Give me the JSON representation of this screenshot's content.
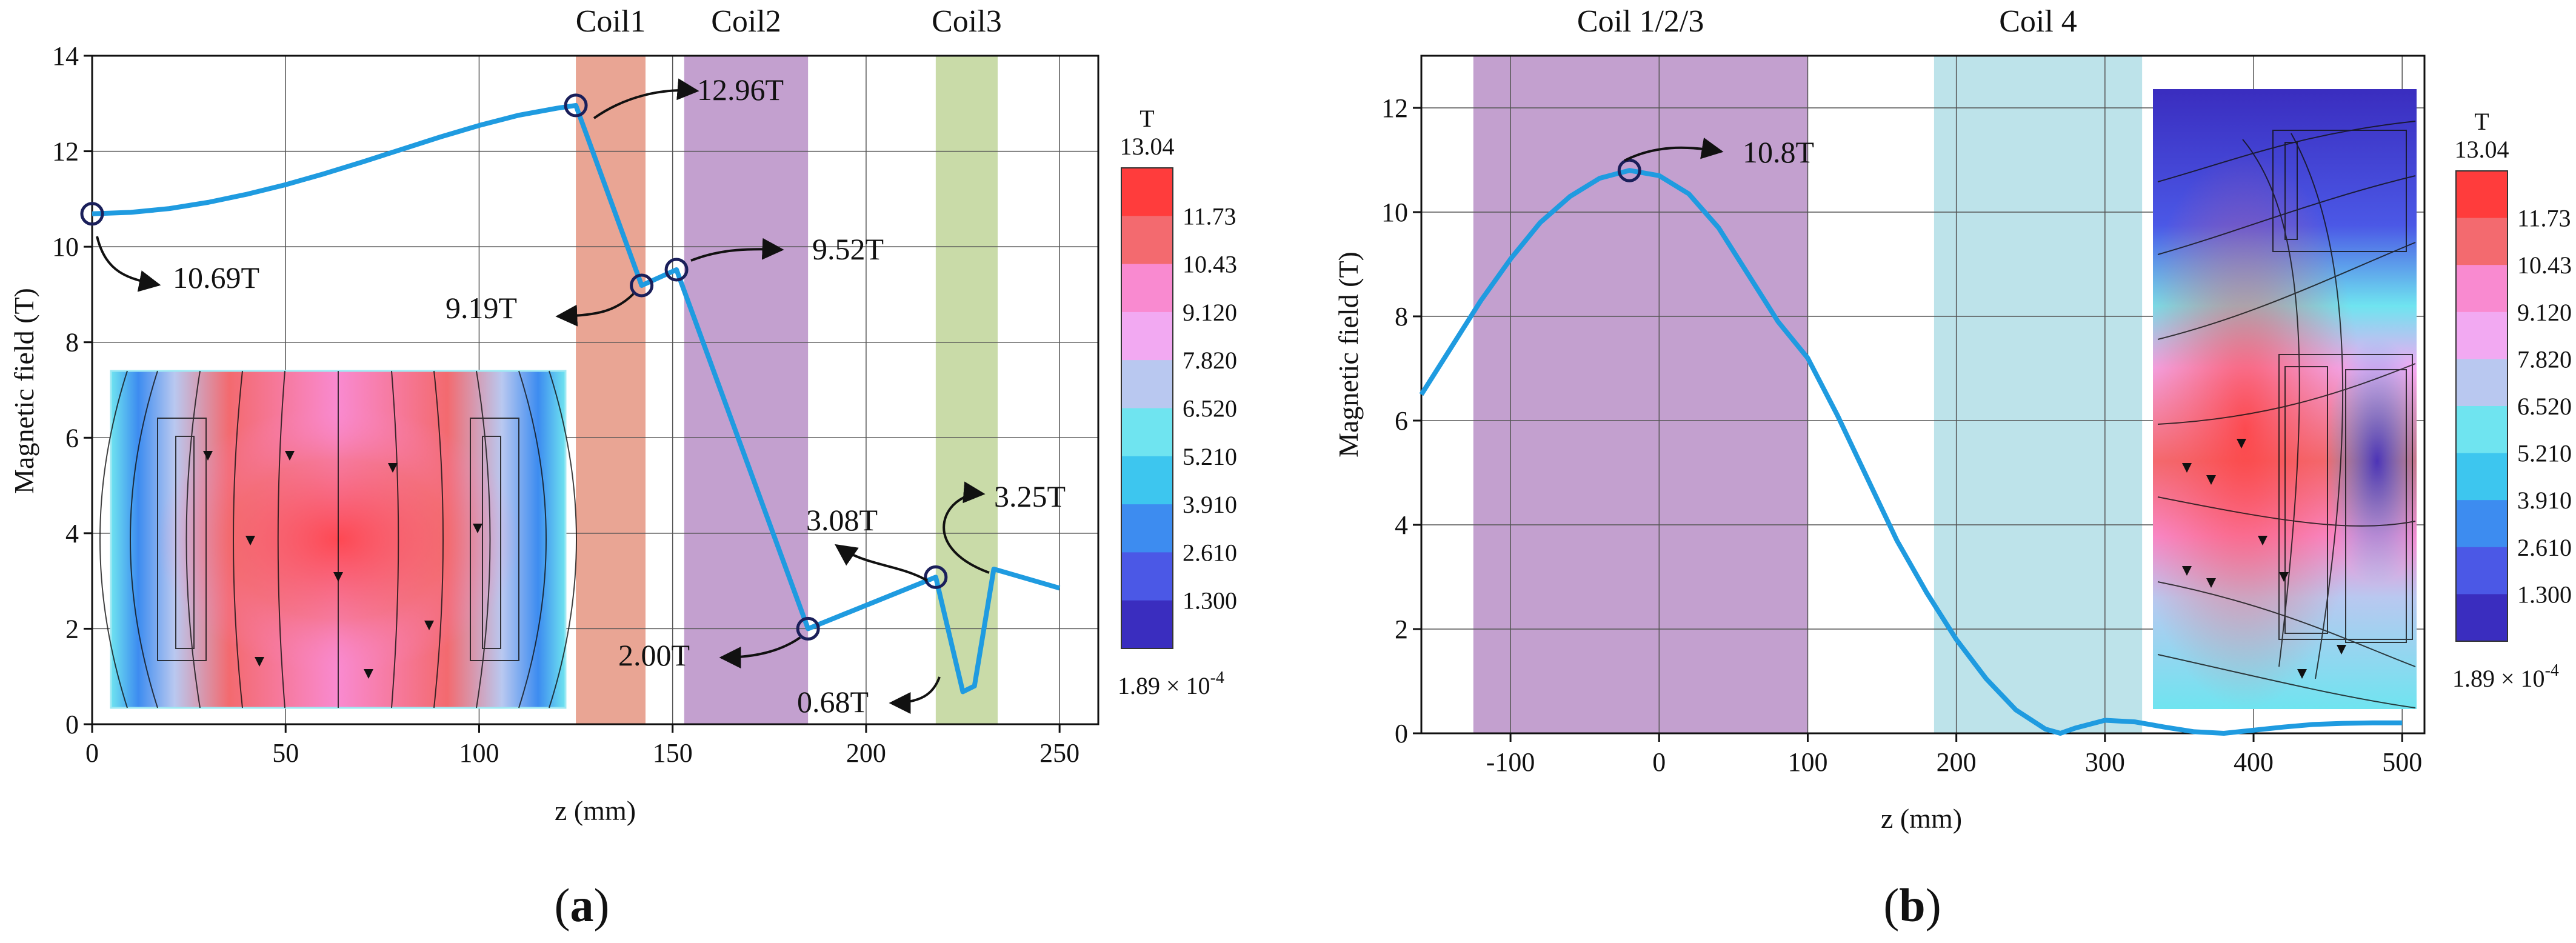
{
  "chart_data": [
    {
      "type": "line",
      "panel_label": "(a)",
      "xlabel": "z (mm)",
      "ylabel": "Magnetic field (T)",
      "xlim": [
        0,
        260
      ],
      "ylim": [
        0,
        14
      ],
      "xticks": [
        0,
        50,
        100,
        150,
        200,
        250
      ],
      "yticks": [
        0,
        2,
        4,
        6,
        8,
        10,
        12,
        14
      ],
      "grid": true,
      "coils": [
        {
          "label": "Coil1",
          "x0": 125,
          "x1": 143,
          "color": "#e9a594"
        },
        {
          "label": "Coil2",
          "x0": 153,
          "x1": 185,
          "color": "#c3a0cf"
        },
        {
          "label": "Coil3",
          "x0": 218,
          "x1": 234,
          "color": "#c9dba8"
        }
      ],
      "series": [
        {
          "name": "Magnetic field",
          "color": "#1f9be0",
          "x": [
            0,
            10,
            20,
            30,
            40,
            50,
            60,
            70,
            80,
            90,
            100,
            110,
            120,
            125,
            142,
            151,
            185,
            218,
            225,
            228,
            233,
            250
          ],
          "y": [
            10.69,
            10.72,
            10.8,
            10.93,
            11.1,
            11.3,
            11.53,
            11.78,
            12.04,
            12.3,
            12.54,
            12.75,
            12.9,
            12.96,
            9.19,
            9.52,
            2.0,
            3.08,
            0.68,
            0.8,
            3.25,
            2.85
          ]
        }
      ],
      "markers": [
        {
          "x": 0,
          "y": 10.69,
          "label": "10.69T"
        },
        {
          "x": 125,
          "y": 12.96,
          "label": "12.96T"
        },
        {
          "x": 142,
          "y": 9.19,
          "label": "9.19T"
        },
        {
          "x": 151,
          "y": 9.52,
          "label": "9.52T"
        },
        {
          "x": 185,
          "y": 2.0,
          "label": "2.00T"
        },
        {
          "x": 218,
          "y": 3.08,
          "label": "3.08T"
        }
      ],
      "extra_annotations": [
        {
          "x": 225,
          "y": 0.68,
          "label": "0.68T"
        },
        {
          "x": 233,
          "y": 3.25,
          "label": "3.25T"
        }
      ],
      "colorbar": {
        "unit": "T",
        "max_label": "13.04",
        "labels": [
          "11.73",
          "10.43",
          "9.120",
          "7.820",
          "6.520",
          "5.210",
          "3.910",
          "2.610",
          "1.300"
        ],
        "min_label": "1.89 × 10",
        "min_exp": "-4",
        "colors": [
          "#ff3c3c",
          "#f36a6f",
          "#f98ad0",
          "#f2a9f2",
          "#b9c8f0",
          "#6fe4f0",
          "#3dc6ef",
          "#3d8cf0",
          "#4b58e6",
          "#3a2dbf"
        ]
      }
    },
    {
      "type": "line",
      "panel_label": "(b)",
      "xlabel": "z (mm)",
      "ylabel": "Magnetic field (T)",
      "xlim": [
        -160,
        515
      ],
      "ylim": [
        0,
        13
      ],
      "xticks": [
        -100,
        0,
        100,
        200,
        300,
        400,
        500
      ],
      "yticks": [
        0,
        2,
        4,
        6,
        8,
        10,
        12
      ],
      "grid": true,
      "coils": [
        {
          "label": "Coil 1/2/3",
          "x0": -125,
          "x1": 100,
          "color": "#c3a0cf"
        },
        {
          "label": "Coil 4",
          "x0": 185,
          "x1": 325,
          "color": "#bde3ea"
        }
      ],
      "series": [
        {
          "name": "Magnetic field",
          "color": "#1f9be0",
          "x": [
            -160,
            -140,
            -120,
            -100,
            -80,
            -60,
            -40,
            -20,
            0,
            20,
            40,
            60,
            80,
            100,
            120,
            140,
            160,
            180,
            200,
            220,
            240,
            260,
            270,
            280,
            300,
            320,
            340,
            360,
            380,
            400,
            420,
            440,
            460,
            480,
            500
          ],
          "y": [
            6.5,
            7.4,
            8.3,
            9.1,
            9.8,
            10.3,
            10.65,
            10.8,
            10.7,
            10.35,
            9.7,
            8.8,
            7.9,
            7.2,
            6.1,
            4.9,
            3.7,
            2.7,
            1.8,
            1.05,
            0.45,
            0.08,
            0.0,
            0.1,
            0.25,
            0.22,
            0.12,
            0.03,
            0.0,
            0.06,
            0.12,
            0.17,
            0.19,
            0.2,
            0.2
          ]
        }
      ],
      "markers": [
        {
          "x": -20,
          "y": 10.8,
          "label": "10.8T"
        }
      ],
      "colorbar": {
        "unit": "T",
        "max_label": "13.04",
        "labels": [
          "11.73",
          "10.43",
          "9.120",
          "7.820",
          "6.520",
          "5.210",
          "3.910",
          "2.610",
          "1.300"
        ],
        "min_label": "1.89 × 10",
        "min_exp": "-4",
        "colors": [
          "#ff3c3c",
          "#f36a6f",
          "#f98ad0",
          "#f2a9f2",
          "#b9c8f0",
          "#6fe4f0",
          "#3dc6ef",
          "#3d8cf0",
          "#4b58e6",
          "#3a2dbf"
        ]
      }
    }
  ]
}
